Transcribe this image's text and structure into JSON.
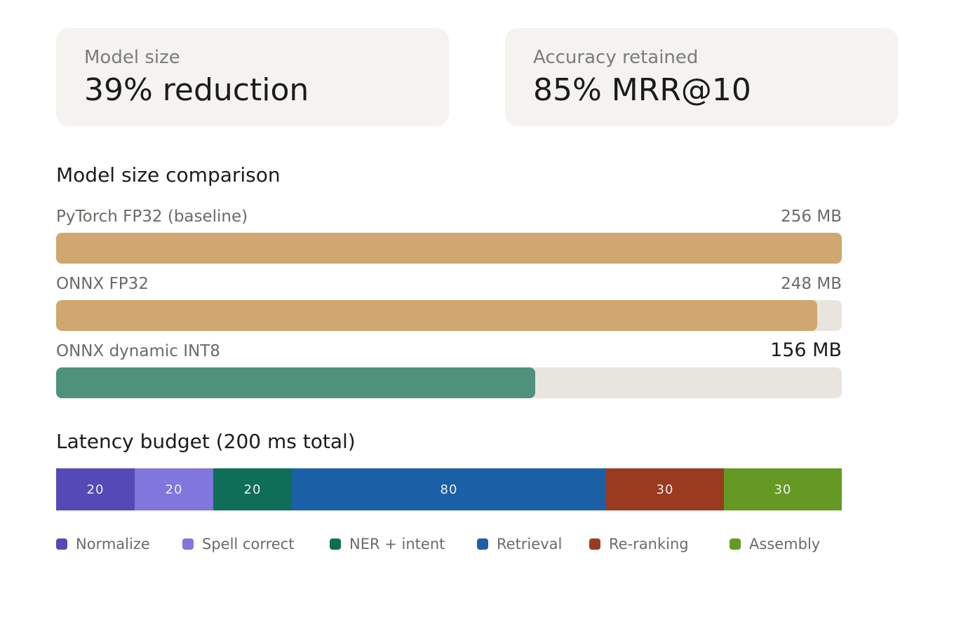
{
  "cards": [
    {
      "label": "Model size",
      "value": "39% reduction"
    },
    {
      "label": "Accuracy retained",
      "value": "85% MRR@10"
    }
  ],
  "colors": {
    "card_bg": "#f4f3ef",
    "track": "#e8e5df",
    "baseline_bar": "#cfa76f",
    "int8_bar": "#4f927c"
  },
  "chart_data": [
    {
      "type": "bar",
      "orientation": "horizontal",
      "title": "Model size comparison",
      "unit": "MB",
      "xlim": [
        0,
        256
      ],
      "categories": [
        "PyTorch FP32 (baseline)",
        "ONNX FP32",
        "ONNX dynamic INT8"
      ],
      "values": [
        256,
        248,
        156
      ],
      "value_labels": [
        "256 MB",
        "248 MB",
        "156 MB"
      ],
      "bar_colors": [
        "#cfa76f",
        "#cfa76f",
        "#4f927c"
      ],
      "emphasized_index": 2
    },
    {
      "type": "bar",
      "orientation": "horizontal",
      "stacked": true,
      "title": "Latency budget (200 ms total)",
      "unit": "ms",
      "total": 200,
      "legend_position": "bottom",
      "series": [
        {
          "name": "Normalize",
          "value": 20,
          "color": "#5549b8"
        },
        {
          "name": "Spell correct",
          "value": 20,
          "color": "#8076dd"
        },
        {
          "name": "NER + intent",
          "value": 20,
          "color": "#0e6e57"
        },
        {
          "name": "Retrieval",
          "value": 80,
          "color": "#1b5fa6"
        },
        {
          "name": "Re-ranking",
          "value": 30,
          "color": "#9a3b1f"
        },
        {
          "name": "Assembly",
          "value": 30,
          "color": "#649a24"
        }
      ]
    }
  ]
}
